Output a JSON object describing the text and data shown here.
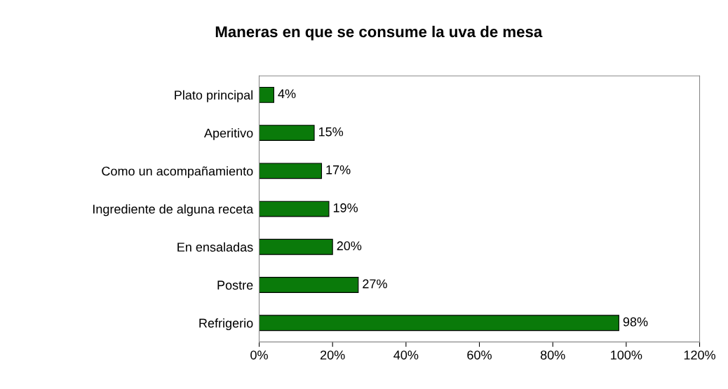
{
  "chart_data": {
    "type": "bar",
    "orientation": "horizontal",
    "title": "Maneras en que se consume la uva de mesa",
    "categories": [
      "Plato principal",
      "Aperitivo",
      "Como un acompañamiento",
      "Ingrediente de alguna receta",
      "En ensaladas",
      "Postre",
      "Refrigerio"
    ],
    "values": [
      4,
      15,
      17,
      19,
      20,
      27,
      98
    ],
    "value_labels": [
      "4%",
      "15%",
      "17%",
      "19%",
      "20%",
      "27%",
      "98%"
    ],
    "color": "#0a7a0a",
    "xlim": [
      0,
      120
    ],
    "xticks": [
      {
        "value": 0,
        "label": "0%"
      },
      {
        "value": 20,
        "label": "20%"
      },
      {
        "value": 40,
        "label": "40%"
      },
      {
        "value": 60,
        "label": "60%"
      },
      {
        "value": 80,
        "label": "80%"
      },
      {
        "value": 100,
        "label": "100%"
      },
      {
        "value": 120,
        "label": "120%"
      }
    ],
    "grid": false,
    "legend": false
  }
}
